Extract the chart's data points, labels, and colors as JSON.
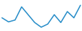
{
  "x": [
    0,
    1,
    2,
    3,
    4,
    5,
    6,
    7,
    8,
    9,
    10,
    11,
    12
  ],
  "y": [
    4.5,
    3.2,
    3.8,
    8.0,
    5.5,
    3.0,
    1.5,
    2.5,
    5.5,
    3.0,
    6.5,
    4.5,
    8.5
  ],
  "line_color": "#2b8fc9",
  "linewidth": 1.2,
  "background_color": "#ffffff",
  "xlim": [
    -0.2,
    12.2
  ],
  "ylim": [
    0.5,
    10.0
  ]
}
